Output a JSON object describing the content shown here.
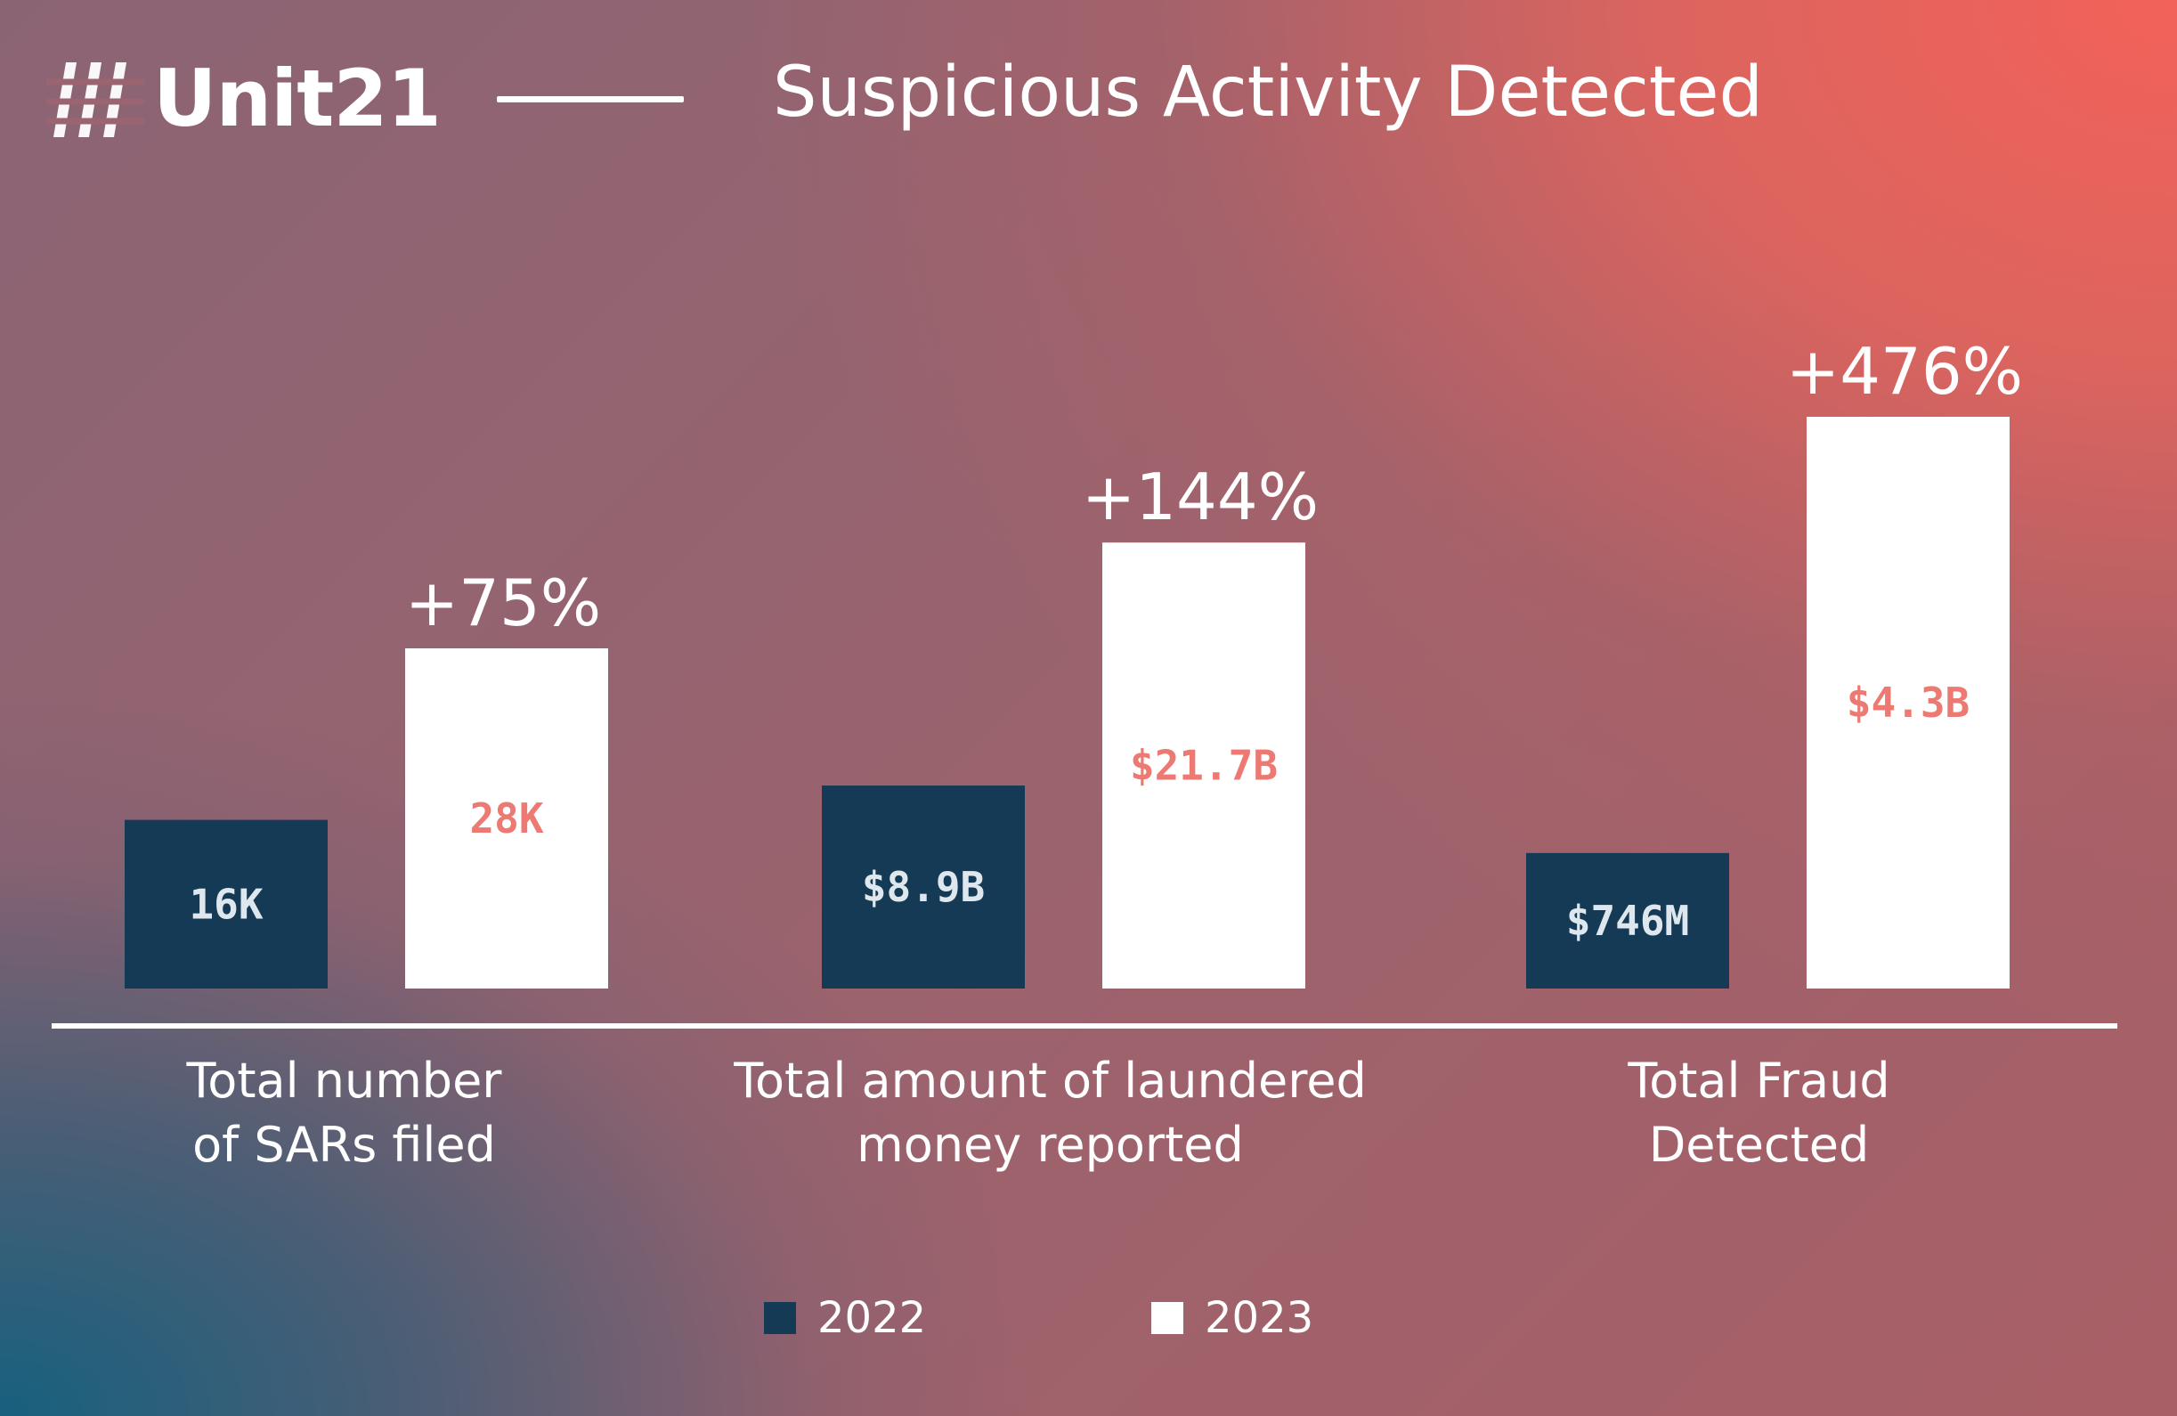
{
  "header": {
    "logo_text": "Unit21",
    "title": "Suspicious Activity Detected"
  },
  "colors": {
    "bar_2022": "#143a55",
    "bar_2023": "#ffffff",
    "label_2022": "#dfe7ee",
    "label_2023": "#ec7a72",
    "text": "#ffffff"
  },
  "chart_data": {
    "type": "bar",
    "title": "Suspicious Activity Detected",
    "categories": [
      "Total number of SARs filed",
      "Total amount of laundered money reported",
      "Total Fraud Detected"
    ],
    "category_lines": [
      [
        "Total number",
        "of SARs filed"
      ],
      [
        "Total amount of laundered",
        "money reported"
      ],
      [
        "Total Fraud",
        "Detected"
      ]
    ],
    "series": [
      {
        "name": "2022",
        "data_labels": [
          "16K",
          "$8.9B",
          "$746M"
        ],
        "relative_heights": [
          0.295,
          0.355,
          0.237
        ]
      },
      {
        "name": "2023",
        "data_labels": [
          "28K",
          "$21.7B",
          "$4.3B"
        ],
        "relative_heights": [
          0.595,
          0.78,
          1.0
        ]
      }
    ],
    "annotations": [
      "+75%",
      "+144%",
      "+476%"
    ],
    "legend": {
      "position": "bottom-center",
      "entries": [
        "2022",
        "2023"
      ]
    },
    "xlabel": "",
    "ylabel": "",
    "grid": false
  }
}
